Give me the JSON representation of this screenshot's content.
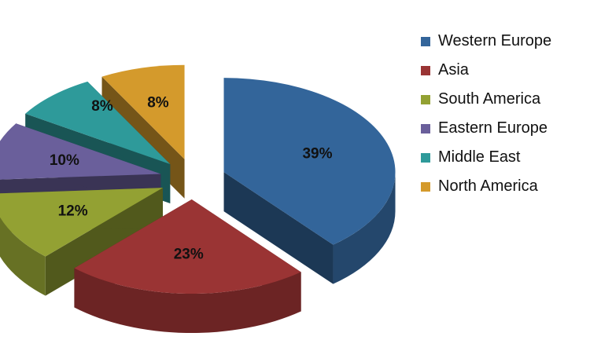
{
  "chart_data": {
    "type": "pie",
    "style": "3d-exploded",
    "categories": [
      "Western Europe",
      "Asia",
      "South America",
      "Eastern Europe",
      "Middle East",
      "North America"
    ],
    "values": [
      39,
      23,
      12,
      10,
      8,
      8
    ],
    "labels": [
      "39%",
      "23%",
      "12%",
      "10%",
      "8%",
      "8%"
    ],
    "colors": [
      "#33659a",
      "#9a3434",
      "#93a133",
      "#6a5f9b",
      "#2e9a9a",
      "#d49a2c"
    ],
    "legend_position": "right"
  }
}
